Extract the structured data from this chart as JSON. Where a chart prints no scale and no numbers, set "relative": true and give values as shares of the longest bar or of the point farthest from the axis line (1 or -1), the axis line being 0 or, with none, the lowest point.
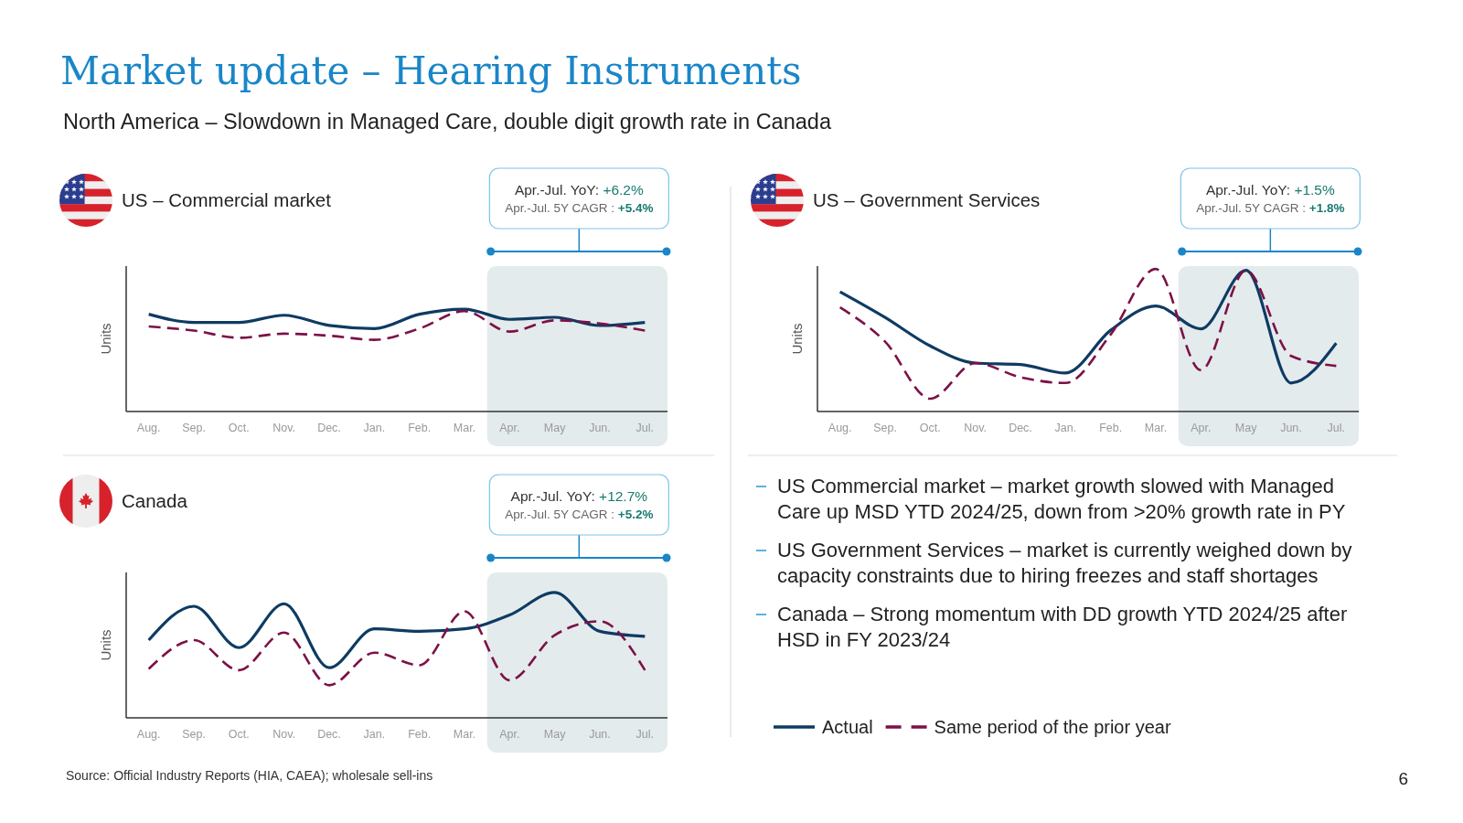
{
  "chart_data": [
    {
      "type": "other",
      "title": "Market update – Hearing Instruments",
      "subtitle": "North America – Slowdown in Managed Care, double digit growth rate in Canada"
    },
    {
      "type": "line",
      "title": "US – Commercial market",
      "ylabel": "Units",
      "annotations": [
        "Apr.-Jul. YoY: +6.2%",
        "Apr.-Jul. 5Y CAGR : +5.4%"
      ],
      "categories": [
        "Aug.",
        "Sep.",
        "Oct.",
        "Nov.",
        "Dec.",
        "Jan.",
        "Feb.",
        "Mar.",
        "Apr.",
        "May",
        "Jun.",
        "Jul."
      ],
      "relative": true,
      "bands": [
        {
          "axis": "x",
          "from": "Apr.",
          "to": "Jul.",
          "color": "#e4ebed"
        }
      ],
      "series": [
        {
          "color": "#0e3b63",
          "values": [
            0.95,
            0.87,
            0.87,
            0.94,
            0.84,
            0.81,
            0.95,
            1.0,
            0.9,
            0.92,
            0.84,
            0.87
          ]
        },
        {
          "color": "#7c1147",
          "line_style": "dashed",
          "values": [
            0.83,
            0.79,
            0.72,
            0.76,
            0.74,
            0.7,
            0.81,
            0.98,
            0.78,
            0.89,
            0.86,
            0.79
          ]
        }
      ]
    },
    {
      "type": "line",
      "title": "US – Government Services",
      "ylabel": "Units",
      "annotations": [
        "Apr.-Jul. YoY: +1.5%",
        "Apr.-Jul. 5Y CAGR : +1.8%"
      ],
      "categories": [
        "Aug.",
        "Sep.",
        "Oct.",
        "Nov.",
        "Dec.",
        "Jan.",
        "Feb.",
        "Mar.",
        "Apr.",
        "May",
        "Jun.",
        "Jul."
      ],
      "relative": true,
      "bands": [
        {
          "axis": "x",
          "from": "Apr.",
          "to": "Jul.",
          "color": "#e4ebed"
        }
      ],
      "series": [
        {
          "color": "#0e3b63",
          "values": [
            0.84,
            0.66,
            0.46,
            0.34,
            0.33,
            0.27,
            0.57,
            0.74,
            0.58,
            0.99,
            0.2,
            0.48
          ]
        },
        {
          "color": "#7c1147",
          "line_style": "dashed",
          "values": [
            0.73,
            0.49,
            0.09,
            0.34,
            0.24,
            0.2,
            0.54,
            1.0,
            0.29,
            0.99,
            0.39,
            0.32
          ]
        }
      ]
    },
    {
      "type": "line",
      "title": "Canada",
      "ylabel": "Units",
      "annotations": [
        "Apr.-Jul. YoY: +12.7%",
        "Apr.-Jul. 5Y CAGR : +5.2%"
      ],
      "categories": [
        "Aug.",
        "Sep.",
        "Oct.",
        "Nov.",
        "Dec.",
        "Jan.",
        "Feb.",
        "Mar.",
        "Apr.",
        "May",
        "Jun.",
        "Jul."
      ],
      "relative": true,
      "legend": "right",
      "bands": [
        {
          "axis": "x",
          "from": "Apr.",
          "to": "Jul.",
          "color": "#e4ebed"
        }
      ],
      "series": [
        {
          "name": "Actual",
          "color": "#0e3b63",
          "values": [
            0.62,
            0.89,
            0.56,
            0.91,
            0.4,
            0.71,
            0.69,
            0.71,
            0.82,
            1.0,
            0.69,
            0.65
          ]
        },
        {
          "name": "Same period of the prior year",
          "color": "#7c1147",
          "line_style": "dashed",
          "values": [
            0.39,
            0.62,
            0.38,
            0.68,
            0.26,
            0.52,
            0.42,
            0.85,
            0.3,
            0.66,
            0.77,
            0.38
          ]
        }
      ]
    },
    {
      "type": "other",
      "annotations": [
        "US Commercial market – market growth slowed with Managed Care up MSD YTD 2024/25, down from >20% growth rate in PY",
        "US Government Services – market is currently weighed down by capacity constraints due to hiring freezes and staff shortages",
        "Canada – Strong momentum with DD growth YTD 2024/25 after HSD in FY 2023/24"
      ]
    },
    {
      "type": "other",
      "annotations": [
        "Source: Official Industry Reports (HIA, CAEA); wholesale sell-ins",
        "6"
      ]
    }
  ]
}
